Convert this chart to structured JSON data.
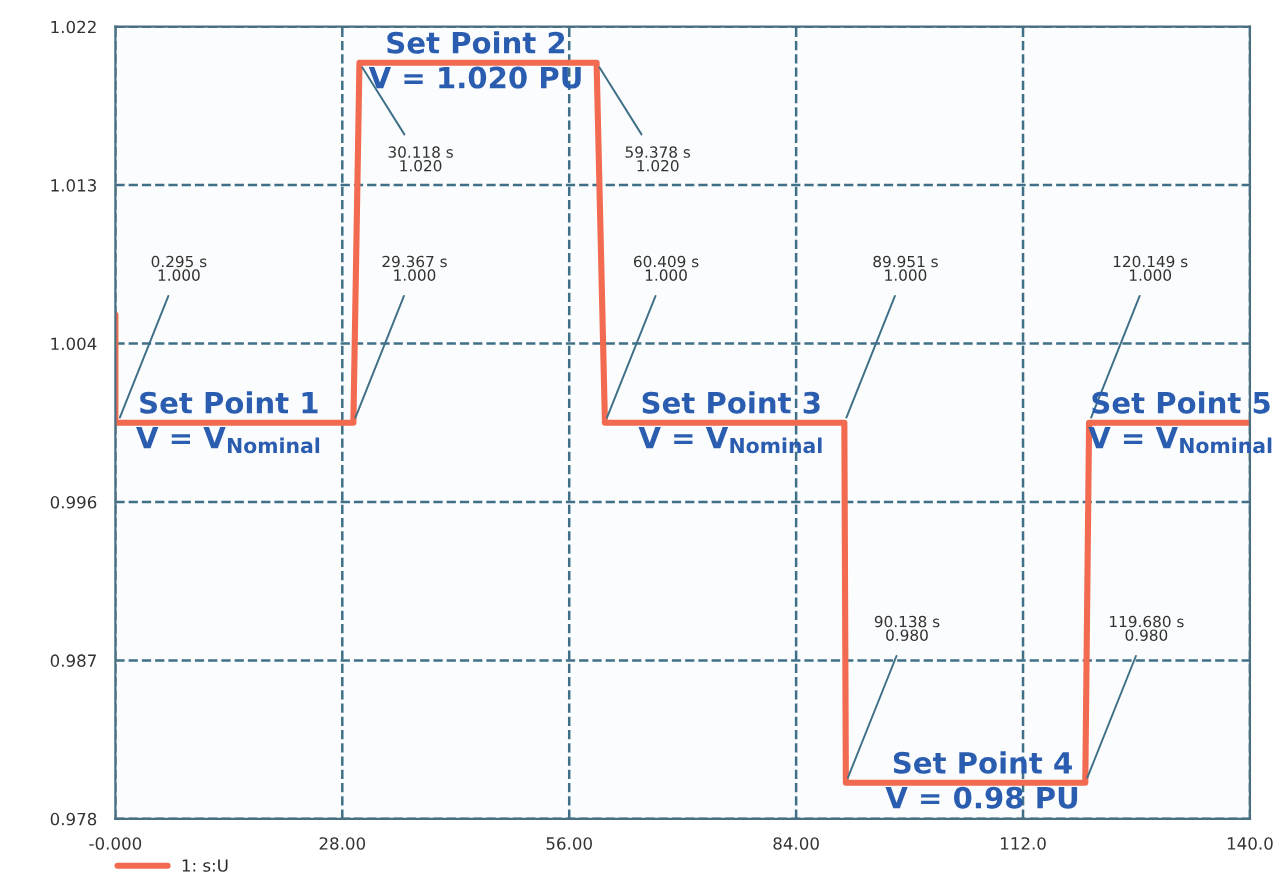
{
  "chart_data": {
    "type": "line",
    "series": [
      {
        "name": "1: s:U",
        "color": "#f26a4f",
        "x": [
          0,
          0,
          0.295,
          29.367,
          30.118,
          59.378,
          60.409,
          89.951,
          90.138,
          119.68,
          120.149,
          140
        ],
        "values": [
          1.006,
          1.0,
          1.0,
          1.0,
          1.02,
          1.02,
          1.0,
          1.0,
          0.98,
          0.98,
          1.0,
          1.0
        ]
      }
    ],
    "xlim": [
      0,
      140
    ],
    "ylim": [
      0.978,
      1.022
    ],
    "xticks": [
      {
        "value": 0,
        "label": "-0.000"
      },
      {
        "value": 28,
        "label": "28.00"
      },
      {
        "value": 56,
        "label": "56.00"
      },
      {
        "value": 84,
        "label": "84.00"
      },
      {
        "value": 112,
        "label": "112.0"
      },
      {
        "value": 140,
        "label": "140.0"
      }
    ],
    "yticks": [
      0.978,
      {
        "value": 0.9868,
        "label": "0.987"
      },
      {
        "value": 0.9956,
        "label": "0.996"
      },
      {
        "value": 1.0044,
        "label": "1.004"
      },
      {
        "value": 1.0132,
        "label": "1.013"
      },
      1.022
    ],
    "grid": true,
    "legend": "bottom left",
    "line_style": "solid",
    "marker": "none",
    "annotations": [
      {
        "text": "0.295 s\n1.000",
        "x": 0.295,
        "y": 1.0
      },
      {
        "text": "29.367 s\n1.000",
        "x": 29.367,
        "y": 1.0
      },
      {
        "text": "30.118 s\n1.020",
        "x": 30.118,
        "y": 1.02
      },
      {
        "text": "59.378 s\n1.020",
        "x": 59.378,
        "y": 1.02
      },
      {
        "text": "60.409 s\n1.000",
        "x": 60.409,
        "y": 1.0
      },
      {
        "text": "89.951 s\n1.000",
        "x": 89.951,
        "y": 1.0
      },
      {
        "text": "90.138 s\n0.980",
        "x": 90.138,
        "y": 0.98
      },
      {
        "text": "119.680 s\n0.980",
        "x": 119.68,
        "y": 0.98
      },
      {
        "text": "120.149 s\n1.000",
        "x": 120.149,
        "y": 1.0
      },
      {
        "text": "Set Point 1\nV = V$_{Nominal}$",
        "x": 14,
        "y": 1.0
      },
      {
        "text": "Set Point 2\nV = 1.020 PU",
        "x": 44.5,
        "y": 1.02
      },
      {
        "text": "Set Point 3\nV = V$_{Nominal}$",
        "x": 76,
        "y": 1.0
      },
      {
        "text": "Set Point 4\nV = 0.98 PU",
        "x": 107,
        "y": 0.98
      },
      {
        "text": "Set Point 5\nV = V$_{Nominal}$",
        "x": 131.5,
        "y": 1.0
      }
    ]
  }
}
